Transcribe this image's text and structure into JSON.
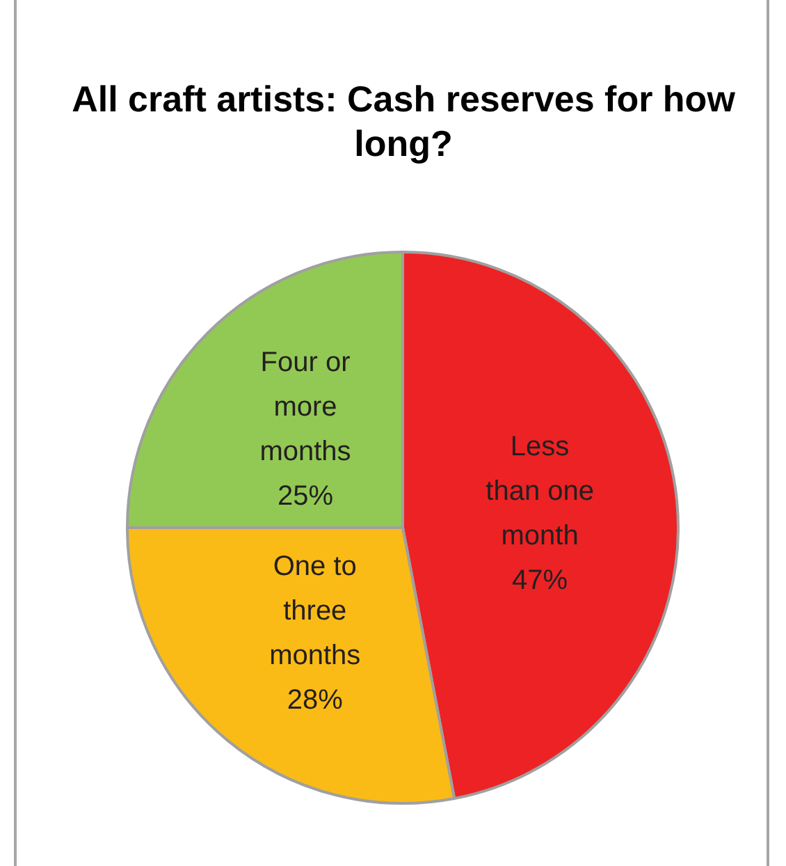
{
  "chart_data": {
    "type": "pie",
    "title": "All craft artists: Cash reserves for how long?",
    "categories": [
      "Less than one month",
      "One to three months",
      "Four or more months"
    ],
    "values": [
      47,
      28,
      25
    ],
    "colors": [
      "#ed2224",
      "#fbbb16",
      "#92c954"
    ],
    "value_labels": [
      "47%",
      "28%",
      "25%"
    ],
    "legend": false
  }
}
